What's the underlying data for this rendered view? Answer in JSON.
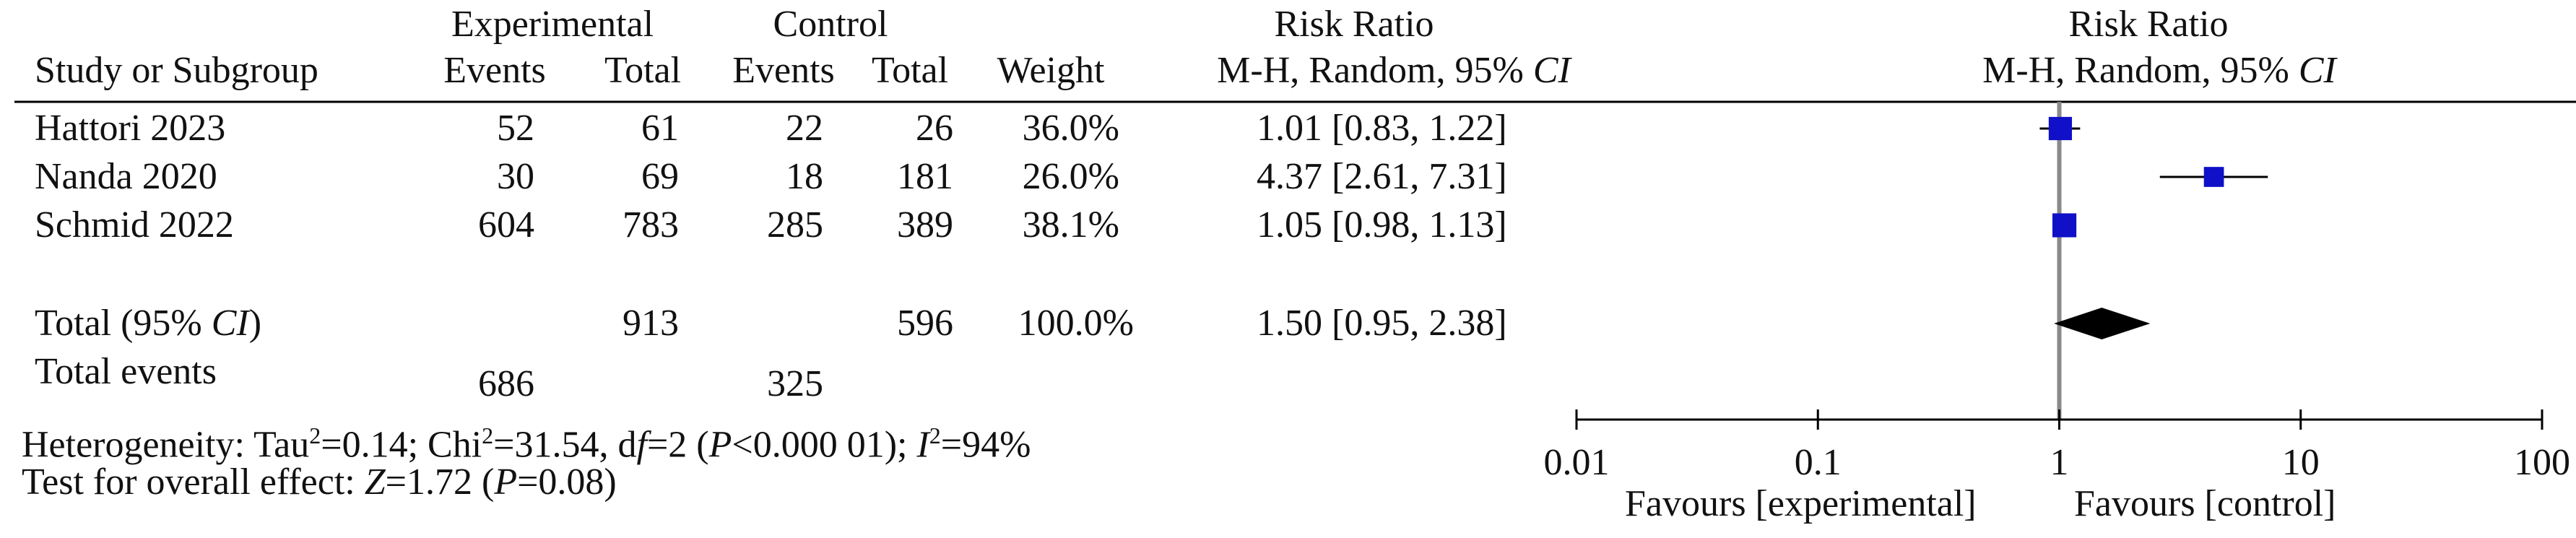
{
  "header": {
    "experimental": "Experimental",
    "control": "Control",
    "risk_ratio": "Risk Ratio",
    "study_col": "Study or Subgroup",
    "events": "Events",
    "total": "Total",
    "weight": "Weight",
    "method": "M-H, Random, 95%",
    "ci": "CI"
  },
  "studies": [
    {
      "name": "Hattori 2023",
      "exp_events": "52",
      "exp_total": "61",
      "ctl_events": "22",
      "ctl_total": "26",
      "weight": "36.0%",
      "rr_text": "1.01 [0.83, 1.22]"
    },
    {
      "name": "Nanda 2020",
      "exp_events": "30",
      "exp_total": "69",
      "ctl_events": "18",
      "ctl_total": "181",
      "weight": "26.0%",
      "rr_text": "4.37 [2.61, 7.31]"
    },
    {
      "name": "Schmid 2022",
      "exp_events": "604",
      "exp_total": "783",
      "ctl_events": "285",
      "ctl_total": "389",
      "weight": "38.1%",
      "rr_text": "1.05 [0.98, 1.13]"
    }
  ],
  "total": {
    "label_prefix": "Total (95%",
    "label_ci": "CI",
    "label_suffix": ")",
    "exp_total": "913",
    "ctl_total": "596",
    "weight": "100.0%",
    "rr_text": "1.50 [0.95, 2.38]",
    "events_label": "Total events",
    "exp_events": "686",
    "ctl_events": "325"
  },
  "footer": {
    "heterogeneity": {
      "p1": "Heterogeneity: Tau",
      "sup1": "2",
      "p2": "=0.14; Chi",
      "sup2": "2",
      "p3": "=31.54, d",
      "df": "f",
      "p4": "=2 (",
      "P": "P",
      "p5": "<0.000 01); ",
      "I": "I",
      "sup3": "2",
      "p6": "=94%"
    },
    "overall": {
      "p1": "Test for overall effect: ",
      "Z": "Z",
      "p2": "=1.72 (",
      "P": "P",
      "p3": "=0.08)"
    }
  },
  "axis": {
    "favours_left": "Favours [experimental]",
    "favours_right": "Favours [control]"
  },
  "chart_data": {
    "type": "scatter",
    "title": "Risk Ratio",
    "subtitle": "M-H, Random, 95% CI",
    "scale": "log",
    "xlim": [
      0.01,
      100
    ],
    "ticks": [
      0.01,
      0.1,
      1,
      10,
      100
    ],
    "tick_labels": [
      "0.01",
      "0.1",
      "1",
      "10",
      "100"
    ],
    "reference_line": 1,
    "series": [
      {
        "name": "Hattori 2023",
        "rr": 1.01,
        "lo": 0.83,
        "hi": 1.22,
        "weight": 36.0
      },
      {
        "name": "Nanda 2020",
        "rr": 4.37,
        "lo": 2.61,
        "hi": 7.31,
        "weight": 26.0
      },
      {
        "name": "Schmid 2022",
        "rr": 1.05,
        "lo": 0.98,
        "hi": 1.13,
        "weight": 38.1
      }
    ],
    "pooled": {
      "rr": 1.5,
      "lo": 0.95,
      "hi": 2.38
    },
    "colors": {
      "marker": "#1010c8",
      "diamond": "#000000",
      "ref_line": "#8a8a8a"
    }
  }
}
